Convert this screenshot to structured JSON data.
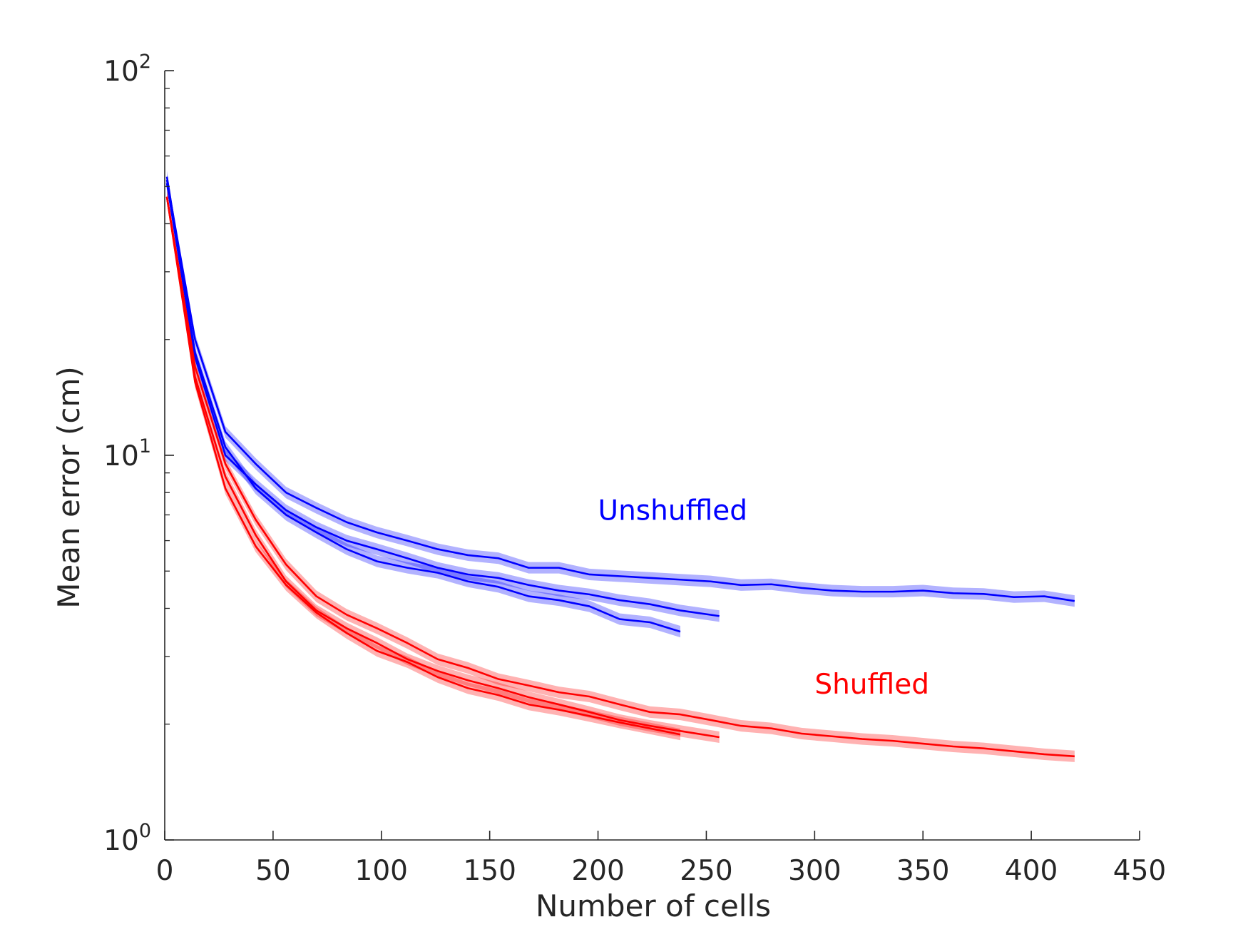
{
  "chart_data": {
    "type": "line",
    "xlabel": "Number of cells",
    "ylabel": "Mean error (cm)",
    "xlim": [
      0,
      450
    ],
    "ylim": [
      1,
      100
    ],
    "yscale": "log",
    "xticks": [
      "0",
      "50",
      "100",
      "150",
      "200",
      "250",
      "300",
      "350",
      "400",
      "450"
    ],
    "ytick_values": [
      1,
      10,
      100
    ],
    "ytick_base": "10",
    "ytick_exponents": [
      "0",
      "1",
      "2"
    ],
    "grid": false,
    "legend": "none",
    "annotations": [
      {
        "text": "Unshuffled",
        "color": "#0000ff",
        "at": [
          200,
          6.8
        ]
      },
      {
        "text": "Shuffled",
        "color": "#ff0000",
        "at": [
          300,
          2.4
        ]
      }
    ],
    "series": [
      {
        "color": "#0000ff",
        "x": [
          1,
          14,
          28,
          42,
          56,
          70,
          84,
          98,
          112,
          126,
          140,
          154,
          168,
          182,
          196,
          210,
          224,
          238,
          252,
          266,
          280,
          294,
          308,
          322,
          336,
          350,
          364,
          378,
          392,
          406,
          420
        ],
        "y": [
          52,
          20,
          11.5,
          9.5,
          8.0,
          7.3,
          6.7,
          6.3,
          6.0,
          5.7,
          5.5,
          5.4,
          5.1,
          5.1,
          4.9,
          4.85,
          4.8,
          4.75,
          4.7,
          4.6,
          4.62,
          4.52,
          4.45,
          4.42,
          4.42,
          4.45,
          4.38,
          4.36,
          4.28,
          4.3,
          4.18
        ]
      },
      {
        "color": "#0000ff",
        "x": [
          1,
          14,
          28,
          42,
          56,
          70,
          84,
          98,
          112,
          126,
          140,
          154,
          168,
          182,
          196,
          210,
          224,
          238,
          256
        ],
        "y": [
          51,
          18,
          10.0,
          8.4,
          7.2,
          6.5,
          6.0,
          5.7,
          5.4,
          5.1,
          4.9,
          4.8,
          4.6,
          4.45,
          4.35,
          4.2,
          4.1,
          3.95,
          3.82
        ]
      },
      {
        "color": "#0000ff",
        "x": [
          1,
          14,
          28,
          42,
          56,
          70,
          84,
          98,
          112,
          126,
          140,
          154,
          168,
          182,
          196,
          210,
          224,
          238
        ],
        "y": [
          53,
          18.5,
          10.5,
          8.2,
          7.0,
          6.3,
          5.7,
          5.3,
          5.1,
          4.95,
          4.7,
          4.55,
          4.3,
          4.2,
          4.05,
          3.75,
          3.68,
          3.48
        ]
      },
      {
        "color": "#ff0000",
        "x": [
          1,
          14,
          28,
          42,
          56,
          70,
          84,
          98,
          112,
          126,
          140,
          154,
          168,
          182,
          196,
          210,
          224,
          238,
          252,
          266,
          280,
          294,
          308,
          322,
          336,
          350,
          364,
          378,
          392,
          406,
          420
        ],
        "y": [
          47,
          17,
          9.5,
          6.8,
          5.2,
          4.3,
          3.85,
          3.55,
          3.25,
          2.95,
          2.8,
          2.62,
          2.52,
          2.42,
          2.36,
          2.25,
          2.15,
          2.12,
          2.05,
          1.98,
          1.95,
          1.89,
          1.86,
          1.83,
          1.81,
          1.78,
          1.75,
          1.73,
          1.7,
          1.67,
          1.65
        ]
      },
      {
        "color": "#ff0000",
        "x": [
          1,
          14,
          28,
          42,
          56,
          70,
          84,
          98,
          112,
          126,
          140,
          154,
          168,
          182,
          196,
          210,
          224,
          238,
          256
        ],
        "y": [
          47,
          16,
          8.8,
          6.2,
          4.7,
          3.95,
          3.55,
          3.25,
          2.95,
          2.75,
          2.6,
          2.48,
          2.35,
          2.25,
          2.15,
          2.05,
          1.98,
          1.92,
          1.85
        ]
      },
      {
        "color": "#ff0000",
        "x": [
          1,
          14,
          28,
          42,
          56,
          70,
          84,
          98,
          112,
          126,
          140,
          154,
          168,
          182,
          196,
          210,
          224,
          238
        ],
        "y": [
          47,
          15.5,
          8.2,
          5.8,
          4.6,
          3.9,
          3.45,
          3.1,
          2.9,
          2.65,
          2.48,
          2.38,
          2.25,
          2.18,
          2.1,
          2.02,
          1.95,
          1.88
        ]
      }
    ]
  }
}
